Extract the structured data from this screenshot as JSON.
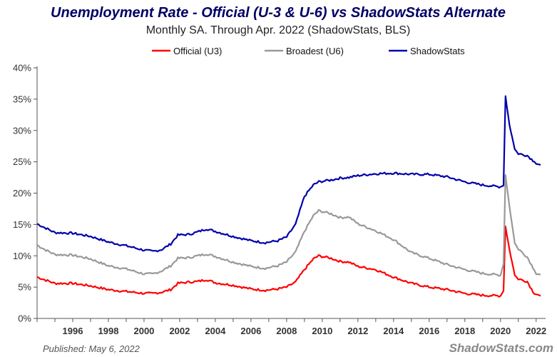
{
  "chart_data": {
    "type": "line",
    "title": "Unemployment Rate - Official (U-3 & U-6) vs ShadowStats Alternate",
    "subtitle": "Monthly SA. Through Apr. 2022  (ShadowStats, BLS)",
    "xlabel": "",
    "ylabel": "",
    "xlim": [
      1994.0,
      2022.33
    ],
    "ylim": [
      0,
      40
    ],
    "y_ticks": [
      "0%",
      "5%",
      "10%",
      "15%",
      "20%",
      "25%",
      "30%",
      "35%",
      "40%"
    ],
    "x_ticks": [
      "1996",
      "1998",
      "2000",
      "2002",
      "2004",
      "2006",
      "2008",
      "2010",
      "2012",
      "2014",
      "2016",
      "2018",
      "2020",
      "2022"
    ],
    "grid": false,
    "legend_position": "top",
    "series": [
      {
        "name": "Official (U3)",
        "color": "#ff0000",
        "points": [
          [
            1994.0,
            6.6
          ],
          [
            1994.5,
            6.1
          ],
          [
            1995.0,
            5.6
          ],
          [
            1996.0,
            5.6
          ],
          [
            1997.0,
            5.2
          ],
          [
            1998.0,
            4.6
          ],
          [
            1999.0,
            4.3
          ],
          [
            2000.0,
            4.0
          ],
          [
            2000.5,
            4.0
          ],
          [
            2001.0,
            4.2
          ],
          [
            2001.5,
            4.6
          ],
          [
            2001.9,
            5.6
          ],
          [
            2002.5,
            5.8
          ],
          [
            2003.0,
            5.9
          ],
          [
            2003.5,
            6.2
          ],
          [
            2004.0,
            5.7
          ],
          [
            2005.0,
            5.3
          ],
          [
            2006.0,
            4.7
          ],
          [
            2006.8,
            4.5
          ],
          [
            2007.5,
            4.7
          ],
          [
            2008.0,
            5.0
          ],
          [
            2008.5,
            5.8
          ],
          [
            2009.0,
            7.8
          ],
          [
            2009.5,
            9.5
          ],
          [
            2009.8,
            10.0
          ],
          [
            2010.5,
            9.6
          ],
          [
            2011.0,
            9.1
          ],
          [
            2011.5,
            9.0
          ],
          [
            2012.0,
            8.3
          ],
          [
            2013.0,
            7.8
          ],
          [
            2014.0,
            6.6
          ],
          [
            2015.0,
            5.6
          ],
          [
            2016.0,
            5.0
          ],
          [
            2017.0,
            4.6
          ],
          [
            2018.0,
            4.0
          ],
          [
            2019.0,
            3.7
          ],
          [
            2020.0,
            3.6
          ],
          [
            2020.17,
            4.4
          ],
          [
            2020.28,
            14.7
          ],
          [
            2020.5,
            11.1
          ],
          [
            2020.8,
            6.9
          ],
          [
            2021.0,
            6.3
          ],
          [
            2021.5,
            5.9
          ],
          [
            2021.9,
            3.9
          ],
          [
            2022.0,
            4.0
          ],
          [
            2022.25,
            3.6
          ]
        ]
      },
      {
        "name": "Broadest (U6)",
        "color": "#999999",
        "points": [
          [
            1994.0,
            11.7
          ],
          [
            1994.5,
            10.9
          ],
          [
            1995.0,
            10.2
          ],
          [
            1996.0,
            10.1
          ],
          [
            1997.0,
            9.5
          ],
          [
            1998.0,
            8.4
          ],
          [
            1999.0,
            7.9
          ],
          [
            2000.0,
            7.1
          ],
          [
            2000.5,
            7.1
          ],
          [
            2001.0,
            7.6
          ],
          [
            2001.5,
            8.4
          ],
          [
            2001.9,
            9.6
          ],
          [
            2002.5,
            9.7
          ],
          [
            2003.0,
            10.0
          ],
          [
            2003.5,
            10.3
          ],
          [
            2004.0,
            9.9
          ],
          [
            2005.0,
            9.0
          ],
          [
            2006.0,
            8.3
          ],
          [
            2006.8,
            8.0
          ],
          [
            2007.5,
            8.4
          ],
          [
            2008.0,
            9.0
          ],
          [
            2008.5,
            10.6
          ],
          [
            2009.0,
            13.9
          ],
          [
            2009.5,
            16.4
          ],
          [
            2009.8,
            17.2
          ],
          [
            2010.5,
            16.7
          ],
          [
            2011.0,
            16.1
          ],
          [
            2011.5,
            16.2
          ],
          [
            2012.0,
            15.1
          ],
          [
            2013.0,
            14.0
          ],
          [
            2014.0,
            12.6
          ],
          [
            2015.0,
            10.5
          ],
          [
            2016.0,
            9.6
          ],
          [
            2017.0,
            8.6
          ],
          [
            2018.0,
            7.8
          ],
          [
            2019.0,
            7.2
          ],
          [
            2020.0,
            6.9
          ],
          [
            2020.17,
            8.7
          ],
          [
            2020.28,
            22.9
          ],
          [
            2020.5,
            18.0
          ],
          [
            2020.8,
            12.0
          ],
          [
            2021.0,
            11.1
          ],
          [
            2021.5,
            9.8
          ],
          [
            2021.9,
            7.7
          ],
          [
            2022.0,
            7.2
          ],
          [
            2022.25,
            7.0
          ]
        ]
      },
      {
        "name": "ShadowStats",
        "color": "#0000aa",
        "points": [
          [
            1994.0,
            15.1
          ],
          [
            1994.5,
            14.4
          ],
          [
            1995.0,
            13.7
          ],
          [
            1996.0,
            13.6
          ],
          [
            1997.0,
            13.1
          ],
          [
            1998.0,
            12.2
          ],
          [
            1999.0,
            11.6
          ],
          [
            2000.0,
            10.9
          ],
          [
            2000.5,
            10.7
          ],
          [
            2001.0,
            11.0
          ],
          [
            2001.5,
            11.9
          ],
          [
            2001.9,
            13.3
          ],
          [
            2002.5,
            13.4
          ],
          [
            2003.0,
            13.8
          ],
          [
            2003.5,
            14.3
          ],
          [
            2004.0,
            13.9
          ],
          [
            2005.0,
            13.1
          ],
          [
            2006.0,
            12.4
          ],
          [
            2006.8,
            12.1
          ],
          [
            2007.5,
            12.4
          ],
          [
            2008.0,
            13.0
          ],
          [
            2008.5,
            15.0
          ],
          [
            2009.0,
            19.5
          ],
          [
            2009.5,
            21.3
          ],
          [
            2009.8,
            21.8
          ],
          [
            2010.5,
            22.1
          ],
          [
            2011.0,
            22.4
          ],
          [
            2011.5,
            22.5
          ],
          [
            2012.0,
            22.8
          ],
          [
            2013.0,
            23.1
          ],
          [
            2014.0,
            23.2
          ],
          [
            2015.0,
            23.0
          ],
          [
            2016.0,
            23.0
          ],
          [
            2017.0,
            22.6
          ],
          [
            2018.0,
            21.8
          ],
          [
            2019.0,
            21.3
          ],
          [
            2020.0,
            21.0
          ],
          [
            2020.17,
            21.2
          ],
          [
            2020.28,
            35.5
          ],
          [
            2020.5,
            31.0
          ],
          [
            2020.8,
            27.0
          ],
          [
            2021.0,
            26.3
          ],
          [
            2021.5,
            26.0
          ],
          [
            2021.9,
            25.0
          ],
          [
            2022.0,
            24.8
          ],
          [
            2022.25,
            24.5
          ]
        ]
      }
    ]
  },
  "footer": {
    "published": "Published: May 6, 2022",
    "brand": "ShadowStats.com"
  }
}
